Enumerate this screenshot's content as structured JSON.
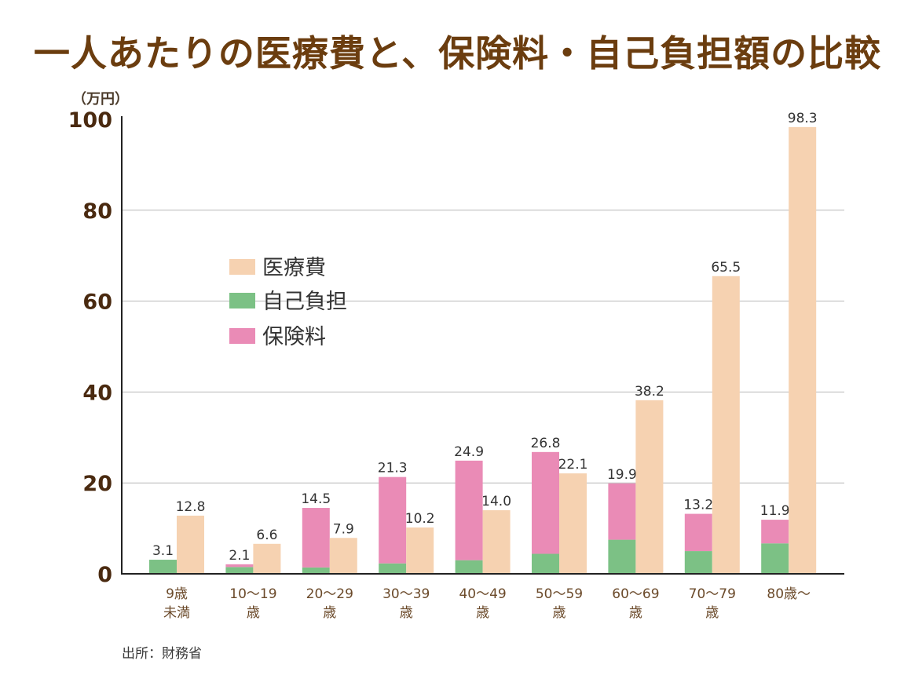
{
  "header": {
    "title": "一人あたりの医療費と、保険料・自己負担額の比較",
    "unit": "（万円）"
  },
  "footer": {
    "source": "出所：財務省"
  },
  "chart_data": {
    "type": "bar",
    "categories": [
      [
        "9歳",
        "未満"
      ],
      [
        "10～19",
        "歳"
      ],
      [
        "20～29",
        "歳"
      ],
      [
        "30～39",
        "歳"
      ],
      [
        "40～49",
        "歳"
      ],
      [
        "50～59",
        "歳"
      ],
      [
        "60～69",
        "歳"
      ],
      [
        "70～79",
        "歳"
      ],
      [
        "80歳～"
      ]
    ],
    "series": [
      {
        "name": "医療費",
        "color": "#f6d2b1",
        "values": [
          12.8,
          6.6,
          7.9,
          10.2,
          14.0,
          22.1,
          38.2,
          65.5,
          98.3
        ]
      },
      {
        "name": "自己負担",
        "color": "#7cc185",
        "values": [
          3.1,
          1.5,
          1.4,
          2.3,
          3.0,
          4.4,
          7.5,
          5.0,
          6.7
        ]
      },
      {
        "name": "保険料",
        "color": "#ea8bb6",
        "values": [
          0,
          0.6,
          13.1,
          19.0,
          21.9,
          22.4,
          12.4,
          8.2,
          5.2
        ]
      }
    ],
    "stack_total_labels": [
      "3.1",
      "2.1",
      "14.5",
      "21.3",
      "24.9",
      "26.8",
      "19.9",
      "13.2",
      "11.9"
    ],
    "cost_labels": [
      "12.8",
      "6.6",
      "7.9",
      "10.2",
      "14.0",
      "22.1",
      "38.2",
      "65.5",
      "98.3"
    ],
    "yticks": [
      "0",
      "20",
      "40",
      "60",
      "80",
      "100"
    ],
    "ylim": [
      0,
      100
    ],
    "grid": true,
    "legend_position": "upper-left"
  }
}
